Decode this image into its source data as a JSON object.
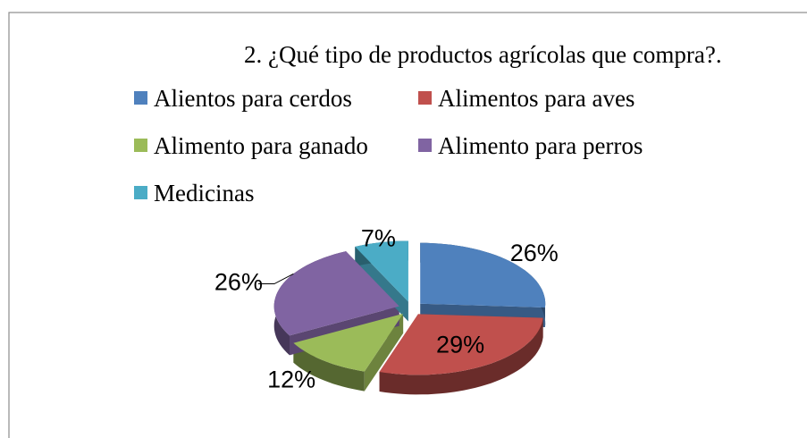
{
  "chart_data": {
    "type": "pie",
    "title": "2. ¿Qué tipo de productos agrícolas que compra?.",
    "categories": [
      "Alientos para cerdos",
      "Alimentos para aves",
      "Alimento para ganado",
      "Alimento para perros",
      "Medicinas"
    ],
    "values": [
      26,
      29,
      12,
      26,
      7
    ],
    "value_labels": [
      "26%",
      "29%",
      "12%",
      "26%",
      "7%"
    ],
    "colors": [
      "#4f81bd",
      "#c0504d",
      "#9bbb59",
      "#8064a2",
      "#4bacc6"
    ],
    "legend": "top"
  }
}
